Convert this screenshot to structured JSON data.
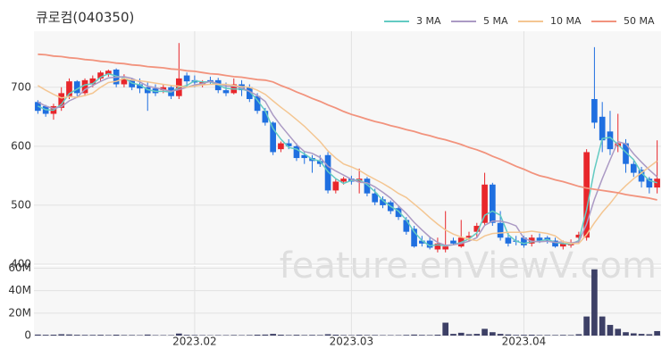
{
  "chart_data": {
    "type": "candlestick",
    "title": "큐로컴(040350)",
    "watermark": "feature.enViewV.com",
    "categories": [
      null,
      null,
      null,
      null,
      null,
      null,
      null,
      null,
      null,
      null,
      null,
      null,
      null,
      null,
      null,
      null,
      null,
      null,
      null,
      null,
      "2023.02",
      null,
      null,
      null,
      null,
      null,
      null,
      null,
      null,
      null,
      null,
      null,
      null,
      null,
      null,
      null,
      null,
      null,
      null,
      null,
      "2023.03",
      null,
      null,
      null,
      null,
      null,
      null,
      null,
      null,
      null,
      null,
      null,
      null,
      null,
      null,
      null,
      null,
      null,
      null,
      null,
      null,
      null,
      "2023.04",
      null,
      null,
      null,
      null,
      null,
      null,
      null,
      null,
      null,
      null,
      null,
      null,
      null,
      null,
      null,
      null,
      null
    ],
    "open": [
      675,
      668,
      655,
      665,
      685,
      710,
      690,
      705,
      715,
      722,
      730,
      705,
      712,
      705,
      700,
      698,
      695,
      700,
      685,
      720,
      712,
      705,
      712,
      712,
      695,
      690,
      705,
      700,
      685,
      660,
      640,
      595,
      605,
      600,
      585,
      580,
      575,
      585,
      525,
      540,
      545,
      540,
      545,
      520,
      510,
      505,
      495,
      475,
      460,
      440,
      440,
      425,
      425,
      440,
      430,
      445,
      455,
      470,
      535,
      470,
      445,
      440,
      445,
      435,
      445,
      445,
      440,
      430,
      432,
      445,
      445,
      680,
      650,
      625,
      600,
      605,
      570,
      560,
      545,
      530
    ],
    "high": [
      678,
      670,
      672,
      700,
      715,
      712,
      715,
      720,
      728,
      730,
      732,
      722,
      715,
      715,
      710,
      705,
      705,
      702,
      775,
      725,
      720,
      712,
      718,
      716,
      708,
      715,
      712,
      705,
      690,
      665,
      642,
      608,
      612,
      605,
      590,
      585,
      585,
      590,
      545,
      548,
      550,
      562,
      548,
      528,
      515,
      508,
      500,
      480,
      465,
      448,
      445,
      445,
      490,
      445,
      475,
      455,
      470,
      555,
      538,
      490,
      455,
      448,
      448,
      450,
      452,
      448,
      445,
      440,
      442,
      455,
      595,
      768,
      675,
      660,
      655,
      612,
      575,
      565,
      548,
      610
    ],
    "low": [
      655,
      650,
      645,
      660,
      680,
      685,
      685,
      700,
      710,
      718,
      700,
      700,
      695,
      690,
      660,
      685,
      690,
      680,
      680,
      700,
      700,
      700,
      705,
      690,
      685,
      688,
      685,
      675,
      655,
      635,
      585,
      590,
      595,
      575,
      570,
      555,
      565,
      520,
      520,
      535,
      535,
      520,
      515,
      500,
      495,
      485,
      475,
      450,
      428,
      430,
      425,
      420,
      420,
      432,
      428,
      440,
      445,
      465,
      465,
      440,
      430,
      432,
      428,
      430,
      436,
      435,
      428,
      425,
      428,
      435,
      440,
      630,
      590,
      585,
      590,
      555,
      548,
      530,
      520,
      520
    ],
    "close": [
      660,
      655,
      668,
      690,
      710,
      690,
      712,
      715,
      725,
      728,
      705,
      715,
      700,
      698,
      690,
      690,
      700,
      685,
      715,
      710,
      708,
      710,
      708,
      695,
      690,
      705,
      695,
      680,
      660,
      640,
      590,
      605,
      600,
      580,
      580,
      575,
      570,
      525,
      540,
      545,
      540,
      545,
      520,
      505,
      500,
      490,
      480,
      455,
      430,
      435,
      428,
      435,
      430,
      435,
      445,
      448,
      465,
      535,
      470,
      445,
      435,
      438,
      432,
      445,
      440,
      440,
      430,
      435,
      436,
      450,
      590,
      640,
      610,
      595,
      605,
      570,
      555,
      540,
      530,
      545
    ],
    "up_color": "#e8262b",
    "down_color": "#1f6fe0",
    "ylim": [
      400,
      795
    ],
    "yticks": [
      400,
      500,
      600,
      700
    ],
    "grid": true,
    "legend": "top-right",
    "series": [
      {
        "name": "3 MA",
        "color": "#63cbc3",
        "values": [
          668,
          662,
          661,
          671,
          689,
          697,
          704,
          706,
          717,
          723,
          719,
          716,
          707,
          704,
          696,
          693,
          693,
          692,
          700,
          703,
          711,
          709,
          709,
          704,
          698,
          697,
          697,
          693,
          678,
          660,
          630,
          612,
          598,
          595,
          587,
          578,
          575,
          557,
          545,
          537,
          542,
          543,
          535,
          523,
          508,
          498,
          490,
          475,
          455,
          440,
          431,
          433,
          431,
          433,
          437,
          443,
          453,
          483,
          490,
          483,
          450,
          439,
          435,
          438,
          439,
          442,
          437,
          435,
          434,
          440,
          492,
          560,
          613,
          615,
          603,
          590,
          577,
          555,
          542,
          538
        ]
      },
      {
        "name": "5 MA",
        "color": "#ab9ac4",
        "values": [
          675,
          668,
          664,
          667,
          677,
          683,
          696,
          703,
          710,
          716,
          717,
          718,
          715,
          709,
          702,
          699,
          696,
          693,
          696,
          700,
          704,
          706,
          710,
          706,
          702,
          702,
          699,
          693,
          686,
          676,
          653,
          635,
          619,
          603,
          591,
          588,
          581,
          566,
          558,
          551,
          544,
          539,
          538,
          531,
          522,
          512,
          499,
          486,
          471,
          458,
          446,
          437,
          432,
          433,
          435,
          439,
          445,
          466,
          473,
          473,
          470,
          465,
          444,
          439,
          438,
          439,
          437,
          438,
          436,
          438,
          468,
          510,
          545,
          577,
          608,
          604,
          587,
          573,
          560,
          548
        ]
      },
      {
        "name": "10 MA",
        "color": "#f4c692",
        "values": [
          703,
          695,
          688,
          682,
          684,
          683,
          686,
          690,
          700,
          708,
          710,
          715,
          712,
          711,
          709,
          707,
          705,
          703,
          702,
          700,
          702,
          704,
          705,
          705,
          705,
          703,
          701,
          700,
          695,
          688,
          677,
          666,
          656,
          645,
          634,
          621,
          608,
          592,
          580,
          570,
          565,
          559,
          551,
          544,
          537,
          529,
          520,
          513,
          502,
          491,
          479,
          468,
          458,
          451,
          446,
          442,
          440,
          448,
          452,
          453,
          454,
          454,
          454,
          456,
          454,
          452,
          448,
          438,
          435,
          435,
          450,
          470,
          488,
          503,
          520,
          533,
          545,
          555,
          565,
          575
        ]
      },
      {
        "name": "50 MA",
        "color": "#f2937d",
        "values": [
          756,
          755,
          753,
          752,
          750,
          749,
          747,
          746,
          744,
          743,
          741,
          740,
          738,
          737,
          735,
          734,
          733,
          731,
          730,
          728,
          727,
          725,
          723,
          722,
          720,
          718,
          717,
          715,
          713,
          712,
          709,
          703,
          698,
          692,
          687,
          681,
          676,
          670,
          665,
          659,
          654,
          650,
          646,
          642,
          639,
          635,
          632,
          628,
          625,
          621,
          618,
          614,
          611,
          607,
          603,
          598,
          594,
          589,
          583,
          578,
          572,
          566,
          561,
          555,
          550,
          547,
          543,
          540,
          536,
          532,
          529,
          527,
          525,
          523,
          521,
          518,
          516,
          514,
          512,
          509
        ]
      }
    ],
    "volume": {
      "color": "#3d4066",
      "ylim": [
        0,
        62000000
      ],
      "yticks": [
        0,
        {
          "value": 20000000,
          "label": "20M"
        },
        {
          "value": 40000000,
          "label": "40M"
        },
        {
          "value": 60000000,
          "label": "60M"
        }
      ],
      "values": [
        900000,
        700000,
        800000,
        1200000,
        1000000,
        700000,
        600000,
        600000,
        700000,
        500000,
        800000,
        500000,
        500000,
        400000,
        900000,
        400000,
        400000,
        400000,
        1800000,
        600000,
        500000,
        400000,
        300000,
        400000,
        400000,
        500000,
        400000,
        500000,
        800000,
        900000,
        1500000,
        800000,
        500000,
        700000,
        500000,
        600000,
        500000,
        1200000,
        800000,
        500000,
        400000,
        700000,
        500000,
        500000,
        400000,
        400000,
        400000,
        600000,
        900000,
        600000,
        500000,
        800000,
        11500000,
        1500000,
        2500000,
        1200000,
        1500000,
        6000000,
        3000000,
        1500000,
        1000000,
        600000,
        700000,
        800000,
        500000,
        500000,
        500000,
        600000,
        500000,
        1200000,
        17000000,
        59000000,
        17000000,
        9500000,
        6000000,
        3000000,
        2000000,
        1500000,
        1200000,
        4000000
      ]
    }
  }
}
